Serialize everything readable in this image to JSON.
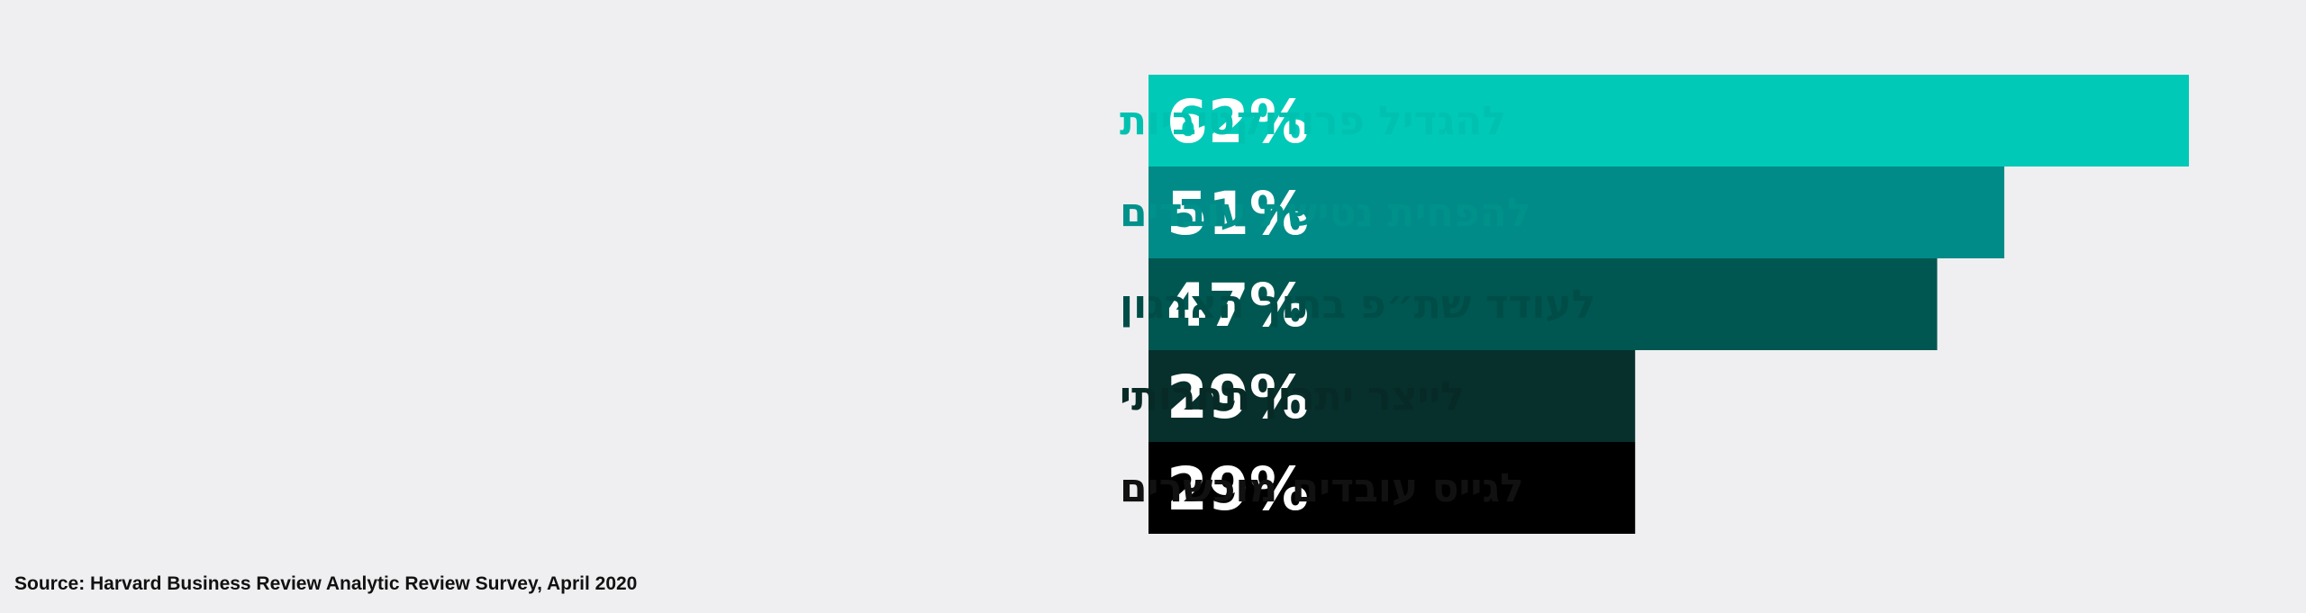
{
  "chart_data": {
    "type": "bar",
    "orientation": "horizontal",
    "title": "",
    "xlabel": "",
    "ylabel": "",
    "xlim": [
      0,
      62
    ],
    "grid": false,
    "legend": "none",
    "categories": [
      "להגדיל פרודוקטיביות",
      "להפחית נטישת עובדים",
      "לעודד שת״פ בתוך הארגון",
      "לייצר יתרון תחרותי",
      "לגייס עובדים מוכשרים"
    ],
    "values": [
      62,
      51,
      47,
      29,
      29
    ],
    "value_labels": [
      "62%",
      "51%",
      "47%",
      "29%",
      "29%"
    ],
    "bar_colors": [
      "#00c9b7",
      "#008b88",
      "#005751",
      "#07302c",
      "#000000"
    ],
    "label_colors": [
      "#00c1b0",
      "#00918b",
      "#004d48",
      "#072a26",
      "#111111"
    ]
  },
  "source": "Source: Harvard Business Review Analytic Review Survey, April 2020"
}
